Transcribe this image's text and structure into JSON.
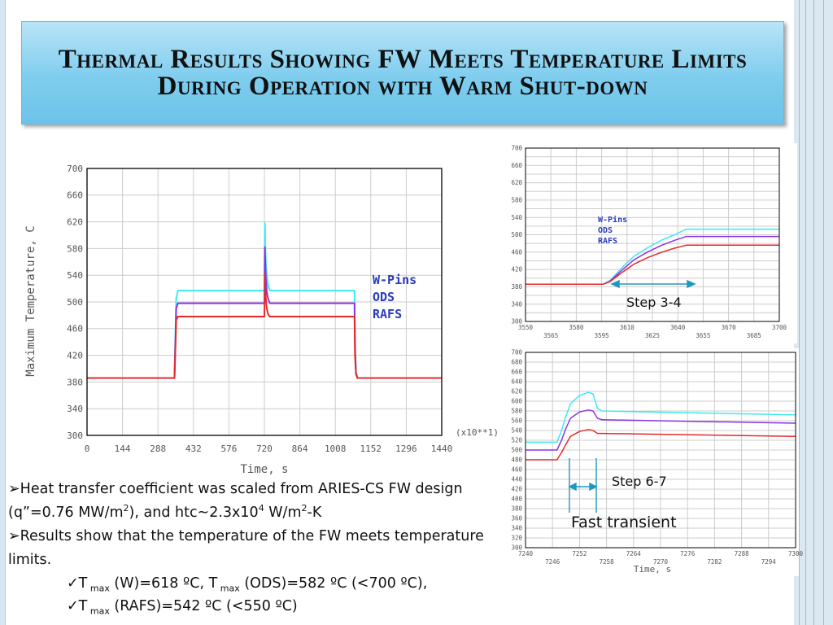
{
  "title": "Thermal Results Showing FW Meets Temperature Limits During Operation with Warm Shut-down",
  "colors": {
    "w_pins": "#3ee8f2",
    "ods": "#8a35e0",
    "rafs": "#e52a2a",
    "legend_text": "#2c3bbd",
    "arrow": "#1e97bd"
  },
  "bullets": {
    "b1_mark": "➢",
    "b1_text_a": "Heat transfer coefficient was scaled from ARIES-CS FW design (q”=0.76 MW/m",
    "b1_sup1": "2",
    "b1_text_b": "), and htc~2.3x10",
    "b1_sup2": "4",
    "b1_text_c": " W/m",
    "b1_sup3": "2",
    "b1_text_d": "-K",
    "b2_mark": "➢",
    "b2_text": "Results show that the temperature of the FW meets temperature limits.",
    "s1_check": "✓",
    "s1_a": "T",
    "s1_sub1": " max",
    "s1_b": " (W)=618 ºC, T",
    "s1_sub2": " max",
    "s1_c": " (ODS)=582 ºC (<700 ºC),",
    "s2_check": "✓",
    "s2_a": "T",
    "s2_sub": " max",
    "s2_b": " (RAFS)=542 ºC (<550 ºC)"
  },
  "callouts": {
    "step34": "Step 3-4",
    "step67": "Step 6-7",
    "fast": "Fast transient"
  },
  "chart_data": [
    {
      "type": "line",
      "xlabel": "Time, s",
      "ylabel": "Maximum Temperature, C",
      "x_scale_note": "(x10**1)",
      "xlim": [
        0,
        1440
      ],
      "ylim": [
        300,
        700
      ],
      "x_ticks": [
        0,
        144,
        288,
        432,
        576,
        720,
        864,
        1008,
        1152,
        1296,
        1440
      ],
      "y_ticks": [
        300,
        340,
        380,
        420,
        460,
        500,
        540,
        580,
        620,
        660,
        700
      ],
      "grid": true,
      "legend": "inside right",
      "series": [
        {
          "name": "W-Pins",
          "color": "#3ee8f2",
          "x": [
            0,
            355,
            358,
            362,
            369,
            720,
            722,
            724,
            726,
            730,
            735,
            742,
            1086,
            1088,
            1092,
            1098,
            1440
          ],
          "y": [
            386,
            386,
            440,
            505,
            517,
            517,
            618,
            580,
            560,
            540,
            525,
            517,
            517,
            440,
            395,
            386,
            386
          ]
        },
        {
          "name": "ODS",
          "color": "#8a35e0",
          "x": [
            0,
            355,
            358,
            362,
            369,
            720,
            722,
            724,
            726,
            730,
            735,
            742,
            1086,
            1088,
            1092,
            1098,
            1440
          ],
          "y": [
            386,
            386,
            430,
            490,
            498,
            498,
            582,
            555,
            535,
            515,
            505,
            498,
            498,
            430,
            393,
            386,
            386
          ]
        },
        {
          "name": "RAFS",
          "color": "#e52a2a",
          "x": [
            0,
            355,
            358,
            362,
            369,
            720,
            722,
            724,
            726,
            730,
            735,
            742,
            1086,
            1088,
            1092,
            1098,
            1440
          ],
          "y": [
            386,
            386,
            420,
            473,
            478,
            478,
            542,
            520,
            505,
            490,
            482,
            478,
            478,
            420,
            392,
            386,
            386
          ]
        }
      ]
    },
    {
      "type": "line",
      "xlim": [
        3550,
        3700
      ],
      "ylim": [
        300,
        700
      ],
      "x_ticks_top": [
        3550,
        3580,
        3610,
        3640,
        3670,
        3700
      ],
      "x_ticks_bottom": [
        3565,
        3595,
        3625,
        3655,
        3685
      ],
      "y_ticks": [
        300,
        320,
        340,
        360,
        380,
        400,
        420,
        440,
        460,
        480,
        500,
        520,
        540,
        560,
        580,
        600,
        620,
        640,
        660,
        680,
        700
      ],
      "y_tick_labels": [
        300,
        340,
        380,
        420,
        460,
        500,
        540,
        580,
        620,
        660,
        700
      ],
      "grid": true,
      "legend": "inside middle",
      "series": [
        {
          "name": "W-Pins",
          "color": "#3ee8f2",
          "x": [
            3550,
            3596,
            3600,
            3606,
            3614,
            3622,
            3630,
            3638,
            3645,
            3700
          ],
          "y": [
            386,
            386,
            395,
            420,
            450,
            470,
            487,
            500,
            513,
            513
          ]
        },
        {
          "name": "ODS",
          "color": "#8a35e0",
          "x": [
            3550,
            3596,
            3600,
            3606,
            3614,
            3622,
            3630,
            3638,
            3645,
            3700
          ],
          "y": [
            386,
            386,
            393,
            415,
            442,
            460,
            475,
            487,
            496,
            496
          ]
        },
        {
          "name": "RAFS",
          "color": "#e52a2a",
          "x": [
            3550,
            3596,
            3600,
            3606,
            3614,
            3622,
            3630,
            3638,
            3645,
            3700
          ],
          "y": [
            386,
            386,
            392,
            410,
            432,
            447,
            459,
            469,
            476,
            476
          ]
        }
      ]
    },
    {
      "type": "line",
      "xlabel": "Time, s",
      "xlim": [
        7240,
        7300
      ],
      "ylim": [
        300,
        700
      ],
      "x_ticks_top": [
        7240,
        7252,
        7264,
        7276,
        7288,
        7300
      ],
      "x_ticks_bottom": [
        7246,
        7258,
        7270,
        7282,
        7294
      ],
      "y_ticks": [
        300,
        320,
        340,
        360,
        380,
        400,
        420,
        440,
        460,
        480,
        500,
        520,
        540,
        560,
        580,
        600,
        620,
        640,
        660,
        680,
        700
      ],
      "y_tick_labels": [
        300,
        320,
        340,
        360,
        380,
        400,
        420,
        440,
        460,
        480,
        500,
        520,
        540,
        560,
        580,
        600,
        620,
        640,
        660,
        680,
        700
      ],
      "grid": true,
      "series": [
        {
          "name": "W-Pins",
          "color": "#3ee8f2",
          "x": [
            7240,
            7247,
            7248,
            7249,
            7250,
            7252,
            7254,
            7255,
            7256,
            7257,
            7300
          ],
          "y": [
            516,
            516,
            540,
            570,
            595,
            612,
            618,
            615,
            585,
            580,
            572
          ]
        },
        {
          "name": "ODS",
          "color": "#8a35e0",
          "x": [
            7240,
            7247,
            7248,
            7249,
            7250,
            7252,
            7254,
            7255,
            7256,
            7257,
            7300
          ],
          "y": [
            500,
            500,
            520,
            545,
            565,
            578,
            582,
            580,
            565,
            562,
            555
          ]
        },
        {
          "name": "RAFS",
          "color": "#e52a2a",
          "x": [
            7240,
            7247,
            7248,
            7249,
            7250,
            7252,
            7254,
            7255,
            7256,
            7257,
            7300
          ],
          "y": [
            480,
            480,
            495,
            512,
            528,
            538,
            542,
            540,
            534,
            534,
            528
          ]
        }
      ]
    }
  ]
}
